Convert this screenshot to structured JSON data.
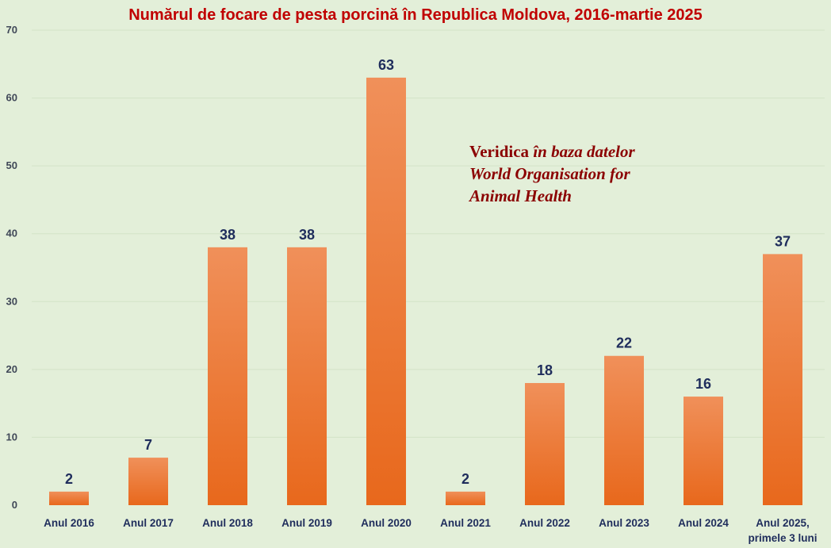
{
  "chart_data": {
    "type": "bar",
    "title": "Numărul de focare de pesta porcină în Republica Moldova, 2016-martie 2025",
    "xlabel": "",
    "ylabel": "",
    "categories": [
      [
        "Anul 2016"
      ],
      [
        "Anul 2017"
      ],
      [
        "Anul 2018"
      ],
      [
        "Anul 2019"
      ],
      [
        "Anul 2020"
      ],
      [
        "Anul 2021"
      ],
      [
        "Anul 2022"
      ],
      [
        "Anul 2023"
      ],
      [
        "Anul 2024"
      ],
      [
        "Anul 2025,",
        "primele 3 luni"
      ]
    ],
    "values": [
      2,
      7,
      38,
      38,
      63,
      2,
      18,
      22,
      16,
      37
    ],
    "ylim": [
      0,
      70
    ],
    "yticks": [
      0,
      10,
      20,
      30,
      40,
      50,
      60,
      70
    ],
    "grid": true,
    "legend": "none",
    "bar_color_top": "#f0905a",
    "bar_color_bottom": "#e8681c",
    "annotation": {
      "prefix": "Veridica",
      "italic_lines": [
        "în baza datelor",
        "World Organisation for",
        "Animal Health"
      ]
    }
  },
  "colors": {
    "background": "#e3efd9",
    "title": "#c00000",
    "labels": "#1f2d5c",
    "annotation": "#8b0000"
  }
}
